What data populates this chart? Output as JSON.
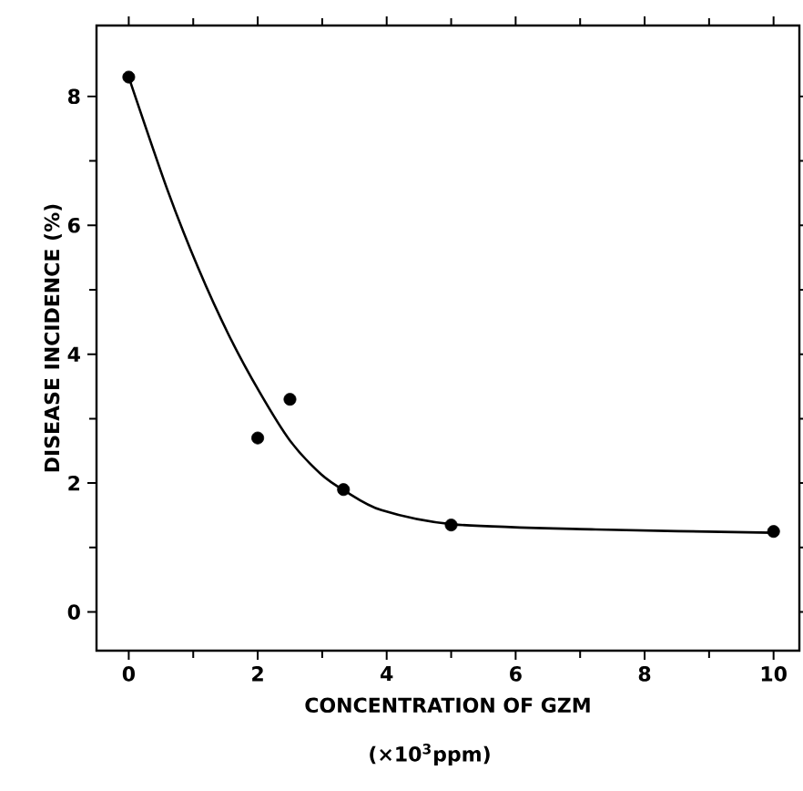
{
  "chart_data": {
    "type": "scatter",
    "xlabel": "CONCENTRATION OF GZM",
    "ylabel": "DISEASE INCIDENCE (%)",
    "annotations": [
      "(×10$^{3}$ppm)"
    ],
    "xlim": [
      -0.5,
      10.4
    ],
    "ylim": [
      -0.6,
      9.1
    ],
    "xticks": [
      0,
      2,
      4,
      6,
      8,
      10
    ],
    "yticks": [
      0,
      2,
      4,
      6,
      8
    ],
    "marker": "circle",
    "series": [
      {
        "color": "#000000",
        "x": [
          0,
          2,
          2.5,
          3.33,
          5,
          10
        ],
        "values": [
          8.3,
          2.7,
          3.3,
          1.9,
          1.35,
          1.25
        ]
      },
      {
        "type": "line",
        "color": "#000000",
        "marker": "none",
        "line_style": "solid",
        "x": [
          0,
          0.6,
          1.08,
          1.55,
          2.03,
          2.5,
          2.98,
          3.35,
          3.92,
          5.03,
          7.24,
          10
        ],
        "values": [
          8.3,
          6.55,
          5.33,
          4.3,
          3.41,
          2.66,
          2.14,
          1.88,
          1.58,
          1.36,
          1.28,
          1.23
        ]
      }
    ]
  }
}
